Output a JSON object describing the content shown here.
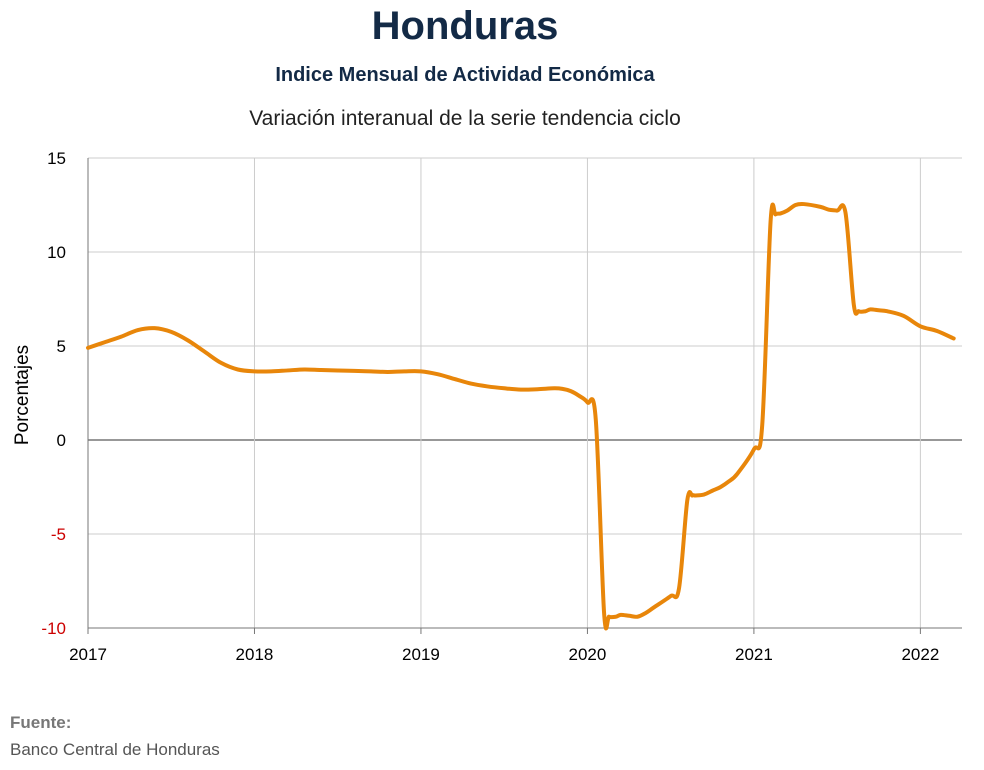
{
  "title": "Honduras",
  "subtitle": "Indice Mensual de  Actividad Económica",
  "subtitle2": "Variación interanual de la serie tendencia ciclo",
  "source": {
    "label": "Fuente:",
    "text": "Banco Central de Honduras"
  },
  "colors": {
    "line": "#e8860a",
    "grid": "#cccccc",
    "zero_line": "#777777",
    "negative_tick": "#cc0000",
    "axis_text": "#000000"
  },
  "chart_data": {
    "type": "line",
    "title": "Honduras",
    "subtitle": "Indice Mensual de  Actividad Económica",
    "ylabel": "Porcentajes",
    "xlabel": "",
    "ylim": [
      -10,
      15
    ],
    "xlim": [
      2017.0,
      2022.25
    ],
    "yticks": [
      15,
      10,
      5,
      0,
      -5,
      -10
    ],
    "xticks": [
      "2017",
      "2018",
      "2019",
      "2020",
      "2021",
      "2022"
    ],
    "grid": true,
    "series": [
      {
        "x": [
          2017.0,
          2017.1,
          2017.2,
          2017.3,
          2017.4,
          2017.5,
          2017.6,
          2017.7,
          2017.8,
          2017.9,
          2018.0,
          2018.1,
          2018.2,
          2018.3,
          2018.4,
          2018.5,
          2018.6,
          2018.7,
          2018.8,
          2018.9,
          2019.0,
          2019.1,
          2019.2,
          2019.3,
          2019.4,
          2019.5,
          2019.6,
          2019.7,
          2019.8,
          2019.85,
          2019.9,
          2019.95,
          2020.0,
          2020.05,
          2020.1,
          2020.13,
          2020.17,
          2020.2,
          2020.25,
          2020.3,
          2020.35,
          2020.4,
          2020.5,
          2020.55,
          2020.6,
          2020.63,
          2020.65,
          2020.7,
          2020.75,
          2020.8,
          2020.85,
          2020.9,
          2021.0,
          2021.05,
          2021.1,
          2021.13,
          2021.16,
          2021.2,
          2021.25,
          2021.3,
          2021.4,
          2021.45,
          2021.5,
          2021.55,
          2021.6,
          2021.63,
          2021.67,
          2021.7,
          2021.75,
          2021.8,
          2021.9,
          2022.0,
          2022.1,
          2022.2
        ],
        "y": [
          4.9,
          5.2,
          5.5,
          5.85,
          5.95,
          5.75,
          5.3,
          4.7,
          4.1,
          3.75,
          3.65,
          3.65,
          3.7,
          3.75,
          3.72,
          3.7,
          3.68,
          3.65,
          3.62,
          3.65,
          3.65,
          3.5,
          3.25,
          3.0,
          2.85,
          2.75,
          2.68,
          2.7,
          2.75,
          2.72,
          2.6,
          2.35,
          2.0,
          1.1,
          -9.2,
          -9.4,
          -9.4,
          -9.3,
          -9.35,
          -9.4,
          -9.2,
          -8.9,
          -8.3,
          -7.9,
          -3.2,
          -2.95,
          -2.95,
          -2.9,
          -2.7,
          -2.5,
          -2.2,
          -1.8,
          -0.5,
          0.8,
          11.6,
          12.0,
          12.05,
          12.2,
          12.5,
          12.55,
          12.4,
          12.25,
          12.2,
          12.1,
          7.2,
          6.85,
          6.85,
          6.95,
          6.9,
          6.85,
          6.6,
          6.05,
          5.8,
          5.4
        ]
      }
    ]
  }
}
